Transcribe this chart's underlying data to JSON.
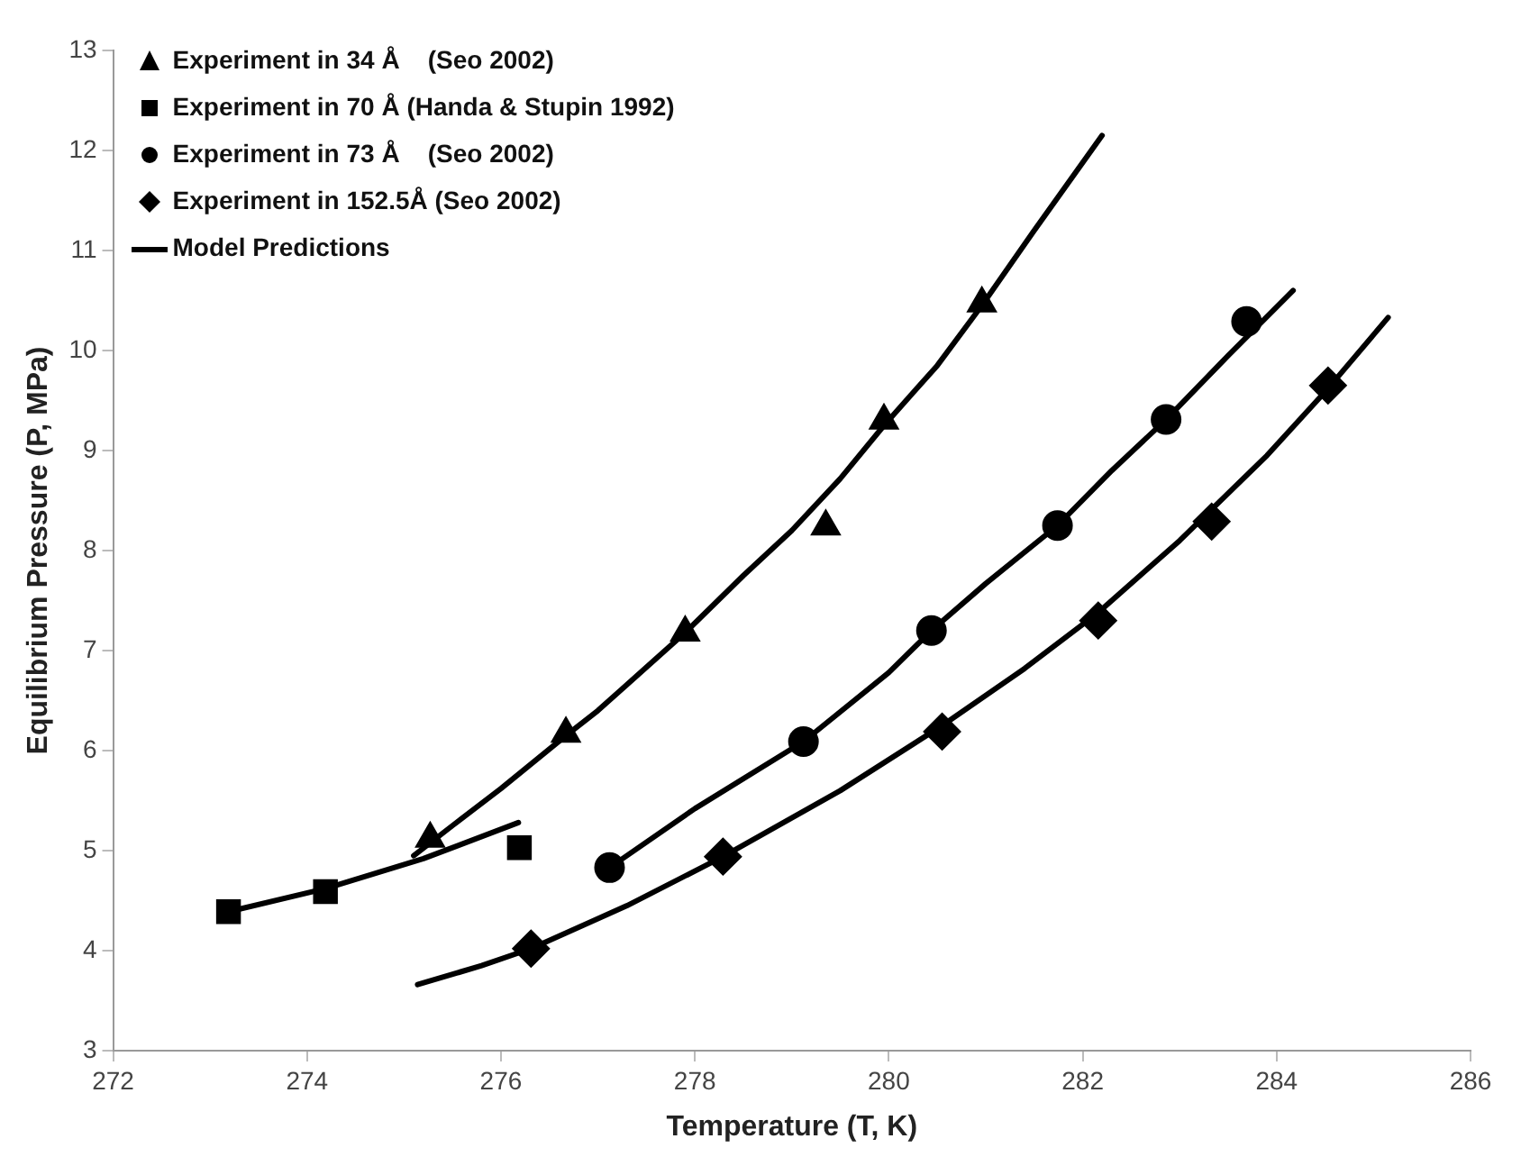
{
  "chart_data": {
    "type": "scatter",
    "xlabel": "Temperature (T, K)",
    "ylabel": "Equilibrium Pressure (P, MPa)",
    "xlim": [
      272,
      286
    ],
    "xticks": [
      272,
      274,
      276,
      278,
      280,
      282,
      284,
      286
    ],
    "ylim": [
      3,
      13
    ],
    "yticks": [
      3,
      4,
      5,
      6,
      7,
      8,
      9,
      10,
      11,
      12,
      13
    ],
    "grid": false,
    "legend": "top left",
    "series": [
      {
        "name": "Experiment in 34 Å    (Seo 2002)",
        "type": "scatter",
        "marker": "triangle",
        "color": "#000000",
        "x": [
          275.27,
          276.67,
          277.9,
          279.35,
          279.95,
          280.96
        ],
        "values": [
          5.12,
          6.17,
          7.18,
          8.24,
          9.3,
          10.47
        ]
      },
      {
        "name": "Experiment in 70 Å (Handa & Stupin 1992)",
        "type": "scatter",
        "marker": "square",
        "color": "#000000",
        "x": [
          273.19,
          274.19,
          276.19
        ],
        "values": [
          4.39,
          4.59,
          5.03
        ]
      },
      {
        "name": "Experiment in 73 Å    (Seo 2002)",
        "type": "scatter",
        "marker": "circle",
        "color": "#000000",
        "x": [
          277.12,
          279.12,
          280.44,
          281.74,
          282.86,
          283.69
        ],
        "values": [
          4.83,
          6.09,
          7.2,
          8.25,
          9.31,
          10.29
        ]
      },
      {
        "name": "Experiment in 152.5Å (Seo 2002)",
        "type": "scatter",
        "marker": "diamond",
        "color": "#000000",
        "x": [
          276.31,
          278.29,
          280.55,
          282.16,
          283.33,
          284.53
        ],
        "values": [
          4.02,
          4.94,
          6.19,
          7.3,
          8.29,
          9.65
        ]
      },
      {
        "name": "Model Predictions",
        "type": "line",
        "marker": "none",
        "color": "#000000",
        "x": [
          275.1,
          275.5,
          276,
          276.67,
          277,
          277.9,
          278.5,
          279,
          279.5,
          279.95,
          280.5,
          280.96,
          281.5,
          282.2
        ],
        "values": [
          4.95,
          5.25,
          5.62,
          6.15,
          6.4,
          7.18,
          7.75,
          8.2,
          8.72,
          9.25,
          9.85,
          10.45,
          11.2,
          12.15
        ]
      },
      {
        "type": "line",
        "marker": "none",
        "color": "#000000",
        "x": [
          273.19,
          274.19,
          275.2,
          276.18
        ],
        "values": [
          4.39,
          4.62,
          4.92,
          5.28
        ]
      },
      {
        "type": "line",
        "marker": "none",
        "color": "#000000",
        "x": [
          277.12,
          278,
          279.12,
          280,
          280.44,
          281,
          281.74,
          282.3,
          282.86,
          283.5,
          284.17
        ],
        "values": [
          4.83,
          5.42,
          6.09,
          6.78,
          7.2,
          7.67,
          8.25,
          8.8,
          9.31,
          9.95,
          10.6
        ]
      },
      {
        "type": "line",
        "marker": "none",
        "color": "#000000",
        "x": [
          275.14,
          275.8,
          276.31,
          277.3,
          278.29,
          279.5,
          280.55,
          281.4,
          282.16,
          283,
          283.9,
          284.53,
          285.15
        ],
        "values": [
          3.66,
          3.85,
          4.02,
          4.45,
          4.94,
          5.6,
          6.25,
          6.82,
          7.38,
          8.1,
          8.95,
          9.62,
          10.33
        ]
      }
    ]
  }
}
